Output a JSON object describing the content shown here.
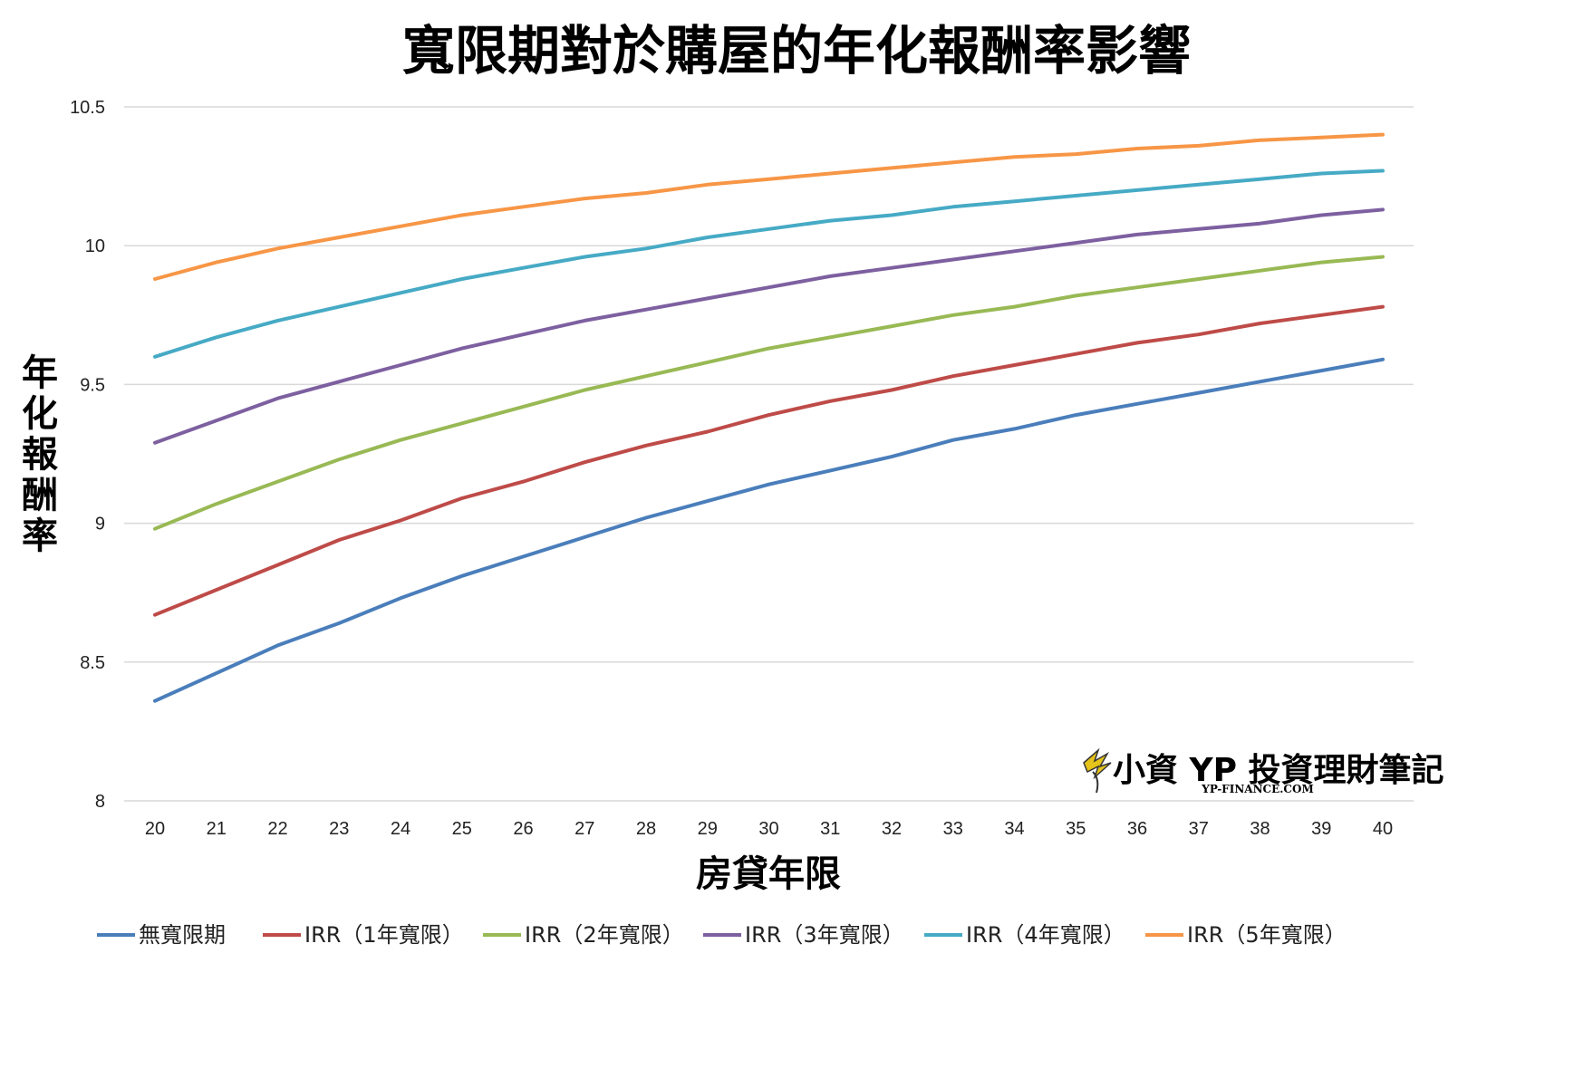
{
  "chart_data": {
    "type": "line",
    "title": "寬限期對於購屋的年化報酬率影響",
    "xlabel": "房貸年限",
    "ylabel": "年化報酬率",
    "x": [
      20,
      21,
      22,
      23,
      24,
      25,
      26,
      27,
      28,
      29,
      30,
      31,
      32,
      33,
      34,
      35,
      36,
      37,
      38,
      39,
      40
    ],
    "ylim": [
      8,
      10.5
    ],
    "yticks": [
      "8",
      "8.5",
      "9",
      "9.5",
      "10",
      "10.5"
    ],
    "grid": true,
    "legend_position": "bottom",
    "series": [
      {
        "name": "無寬限期",
        "color": "#4a7ebb",
        "values": [
          8.36,
          8.46,
          8.56,
          8.64,
          8.73,
          8.81,
          8.88,
          8.95,
          9.02,
          9.08,
          9.14,
          9.19,
          9.24,
          9.3,
          9.34,
          9.39,
          9.43,
          9.47,
          9.51,
          9.55,
          9.59
        ]
      },
      {
        "name": "IRR（1年寬限）",
        "color": "#be4b48",
        "values": [
          8.67,
          8.76,
          8.85,
          8.94,
          9.01,
          9.09,
          9.15,
          9.22,
          9.28,
          9.33,
          9.39,
          9.44,
          9.48,
          9.53,
          9.57,
          9.61,
          9.65,
          9.68,
          9.72,
          9.75,
          9.78
        ]
      },
      {
        "name": "IRR（2年寬限）",
        "color": "#98b954",
        "values": [
          8.98,
          9.07,
          9.15,
          9.23,
          9.3,
          9.36,
          9.42,
          9.48,
          9.53,
          9.58,
          9.63,
          9.67,
          9.71,
          9.75,
          9.78,
          9.82,
          9.85,
          9.88,
          9.91,
          9.94,
          9.96
        ]
      },
      {
        "name": "IRR（3年寬限）",
        "color": "#7d60a0",
        "values": [
          9.29,
          9.37,
          9.45,
          9.51,
          9.57,
          9.63,
          9.68,
          9.73,
          9.77,
          9.81,
          9.85,
          9.89,
          9.92,
          9.95,
          9.98,
          10.01,
          10.04,
          10.06,
          10.08,
          10.11,
          10.13
        ]
      },
      {
        "name": "IRR（4年寬限）",
        "color": "#46aac5",
        "values": [
          9.6,
          9.67,
          9.73,
          9.78,
          9.83,
          9.88,
          9.92,
          9.96,
          9.99,
          10.03,
          10.06,
          10.09,
          10.11,
          10.14,
          10.16,
          10.18,
          10.2,
          10.22,
          10.24,
          10.26,
          10.27
        ]
      },
      {
        "name": "IRR（5年寬限）",
        "color": "#f79646",
        "values": [
          9.88,
          9.94,
          9.99,
          10.03,
          10.07,
          10.11,
          10.14,
          10.17,
          10.19,
          10.22,
          10.24,
          10.26,
          10.28,
          10.3,
          10.32,
          10.33,
          10.35,
          10.36,
          10.38,
          10.39,
          10.4
        ]
      }
    ]
  },
  "watermark": {
    "main": "小資 YP 投資理財筆記",
    "sub": "YP-FINANCE.COM"
  }
}
